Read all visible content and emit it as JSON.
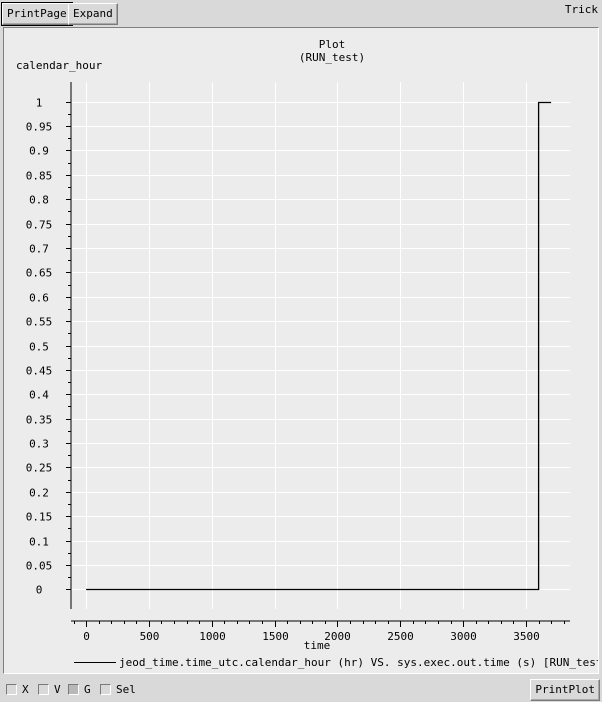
{
  "toolbar": {
    "print_page_label": "PrintPage",
    "expand_label": "Expand",
    "app_name": "Trick"
  },
  "bottom": {
    "checkboxes": [
      {
        "label": "X",
        "checked": false
      },
      {
        "label": "V",
        "checked": false
      },
      {
        "label": "G",
        "checked": true
      },
      {
        "label": "Sel",
        "checked": false
      }
    ],
    "print_plot_label": "PrintPlot"
  },
  "chart_data": {
    "type": "line",
    "title": "Plot",
    "subtitle": "(RUN_test)",
    "xlabel": "time",
    "ylabel": "calendar_hour",
    "xlim": [
      -120,
      3850
    ],
    "ylim": [
      -0.04,
      1.04
    ],
    "x_ticks": [
      0,
      500,
      1000,
      1500,
      2000,
      2500,
      3000,
      3500
    ],
    "y_ticks": [
      0,
      0.05,
      0.1,
      0.15,
      0.2,
      0.25,
      0.3,
      0.35,
      0.4,
      0.45,
      0.5,
      0.55,
      0.6,
      0.65,
      0.7,
      0.75,
      0.8,
      0.85,
      0.9,
      0.95,
      1
    ],
    "grid": true,
    "legend_position": "bottom",
    "series": [
      {
        "name": "jeod_time.time_utc.calendar_hour (hr) VS. sys.exec.out.time (s) [RUN_test]",
        "color": "#000000",
        "x": [
          0,
          3600,
          3600,
          3700
        ],
        "y": [
          0,
          0,
          1,
          1
        ]
      }
    ]
  }
}
